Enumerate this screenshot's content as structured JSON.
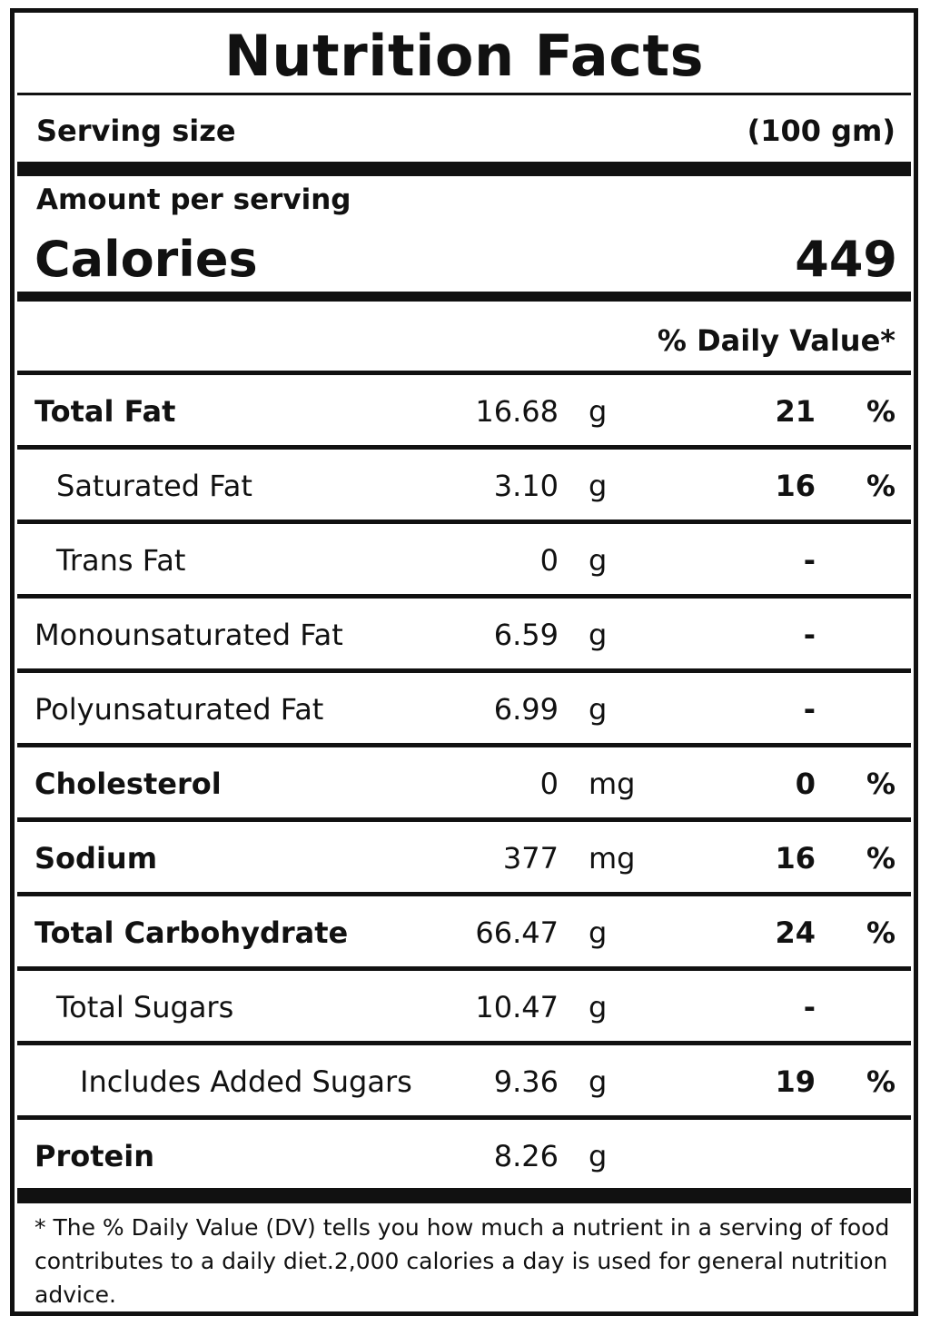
{
  "label": {
    "title": "Nutrition Facts",
    "serving_label": "Serving size",
    "serving_value": "(100 gm)",
    "amount_per_serving": "Amount per serving",
    "calories_label": "Calories",
    "calories_value": "449",
    "daily_value_header": "% Daily Value*",
    "rows": [
      {
        "name": "Total Fat",
        "amount": "16.68",
        "unit": "g",
        "dv": "21",
        "dv_sign": "%"
      },
      {
        "name": "Saturated Fat",
        "amount": "3.10",
        "unit": "g",
        "dv": "16",
        "dv_sign": "%"
      },
      {
        "name": "Trans Fat",
        "amount": "0",
        "unit": "g",
        "dv": "-",
        "dv_sign": ""
      },
      {
        "name": "Monounsaturated Fat",
        "amount": "6.59",
        "unit": "g",
        "dv": "-",
        "dv_sign": ""
      },
      {
        "name": "Polyunsaturated Fat",
        "amount": "6.99",
        "unit": "g",
        "dv": "-",
        "dv_sign": ""
      },
      {
        "name": "Cholesterol",
        "amount": "0",
        "unit": "mg",
        "dv": "0",
        "dv_sign": "%"
      },
      {
        "name": "Sodium",
        "amount": "377",
        "unit": "mg",
        "dv": "16",
        "dv_sign": "%"
      },
      {
        "name": "Total Carbohydrate",
        "amount": "66.47",
        "unit": "g",
        "dv": "24",
        "dv_sign": "%"
      },
      {
        "name": "Total Sugars",
        "amount": "10.47",
        "unit": "g",
        "dv": "-",
        "dv_sign": ""
      },
      {
        "name": "Includes Added Sugars",
        "amount": "9.36",
        "unit": "g",
        "dv": "19",
        "dv_sign": "%"
      },
      {
        "name": "Protein",
        "amount": "8.26",
        "unit": "g",
        "dv": "",
        "dv_sign": ""
      }
    ],
    "footnote": "* The % Daily Value (DV) tells you how much a nutrient in a serving of food contributes to a daily diet.2,000 calories a day is used for general nutrition advice."
  }
}
